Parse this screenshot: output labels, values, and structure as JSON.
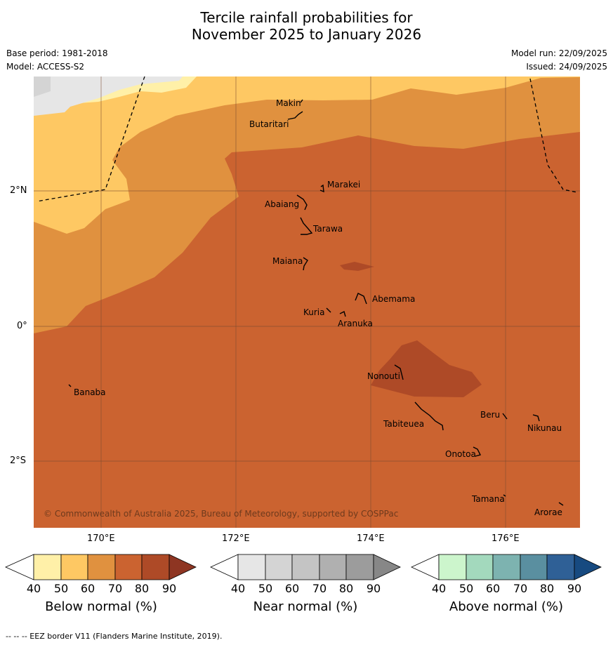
{
  "title": {
    "line1": "Tercile rainfall probabilities for",
    "line2": "November 2025 to January 2026"
  },
  "meta": {
    "base_period": "Base period: 1981-2018",
    "model": "Model: ACCESS-S2",
    "model_run": "Model run: 22/09/2025",
    "issued": "Issued: 24/09/2025"
  },
  "axes": {
    "lat_labels": [
      "2°N",
      "0°",
      "2°S"
    ],
    "lon_labels": [
      "170°E",
      "172°E",
      "174°E",
      "176°E"
    ]
  },
  "islands": {
    "makin": "Makin",
    "butaritari": "Butaritari",
    "marakei": "Marakei",
    "abaiang": "Abaiang",
    "tarawa": "Tarawa",
    "maiana": "Maiana",
    "abemama": "Abemama",
    "kuria": "Kuria",
    "aranuka": "Aranuka",
    "nonouti": "Nonouti",
    "banaba": "Banaba",
    "beru": "Beru",
    "nikunau": "Nikunau",
    "tabiteuea": "Tabiteuea",
    "onotoa": "Onotoa",
    "tamana": "Tamana",
    "arorae": "Arorae"
  },
  "copyright": "© Commonwealth of Australia 2025, Bureau of Meteorology, supported by COSPPac",
  "colorbars": [
    {
      "label": "Below normal (%)",
      "ticks": [
        "40",
        "50",
        "60",
        "70",
        "80",
        "90"
      ],
      "colors": [
        "#ffffff",
        "#fff0a8",
        "#fec863",
        "#e0913f",
        "#cb6330",
        "#ae4a27",
        "#8e3522"
      ]
    },
    {
      "label": "Near normal (%)",
      "ticks": [
        "40",
        "50",
        "60",
        "70",
        "80",
        "90"
      ],
      "colors": [
        "#ffffff",
        "#e6e6e6",
        "#d4d4d4",
        "#c4c4c4",
        "#b0b0b0",
        "#9c9c9c",
        "#878787"
      ]
    },
    {
      "label": "Above normal (%)",
      "ticks": [
        "40",
        "50",
        "60",
        "70",
        "80",
        "90"
      ],
      "colors": [
        "#ffffff",
        "#ccf5cc",
        "#a3d9bd",
        "#7db3b0",
        "#5a8fa0",
        "#2f6096",
        "#174a80"
      ]
    }
  ],
  "footer": "--  --  -- EEZ border V11 (Flanders Marine Institute, 2019).",
  "colors": {
    "c50": "#fec863",
    "c40": "#fff0a8",
    "c60": "#e0913f",
    "c70": "#cb6330",
    "c80": "#ae4a27",
    "grey": "#e6e6e6"
  }
}
